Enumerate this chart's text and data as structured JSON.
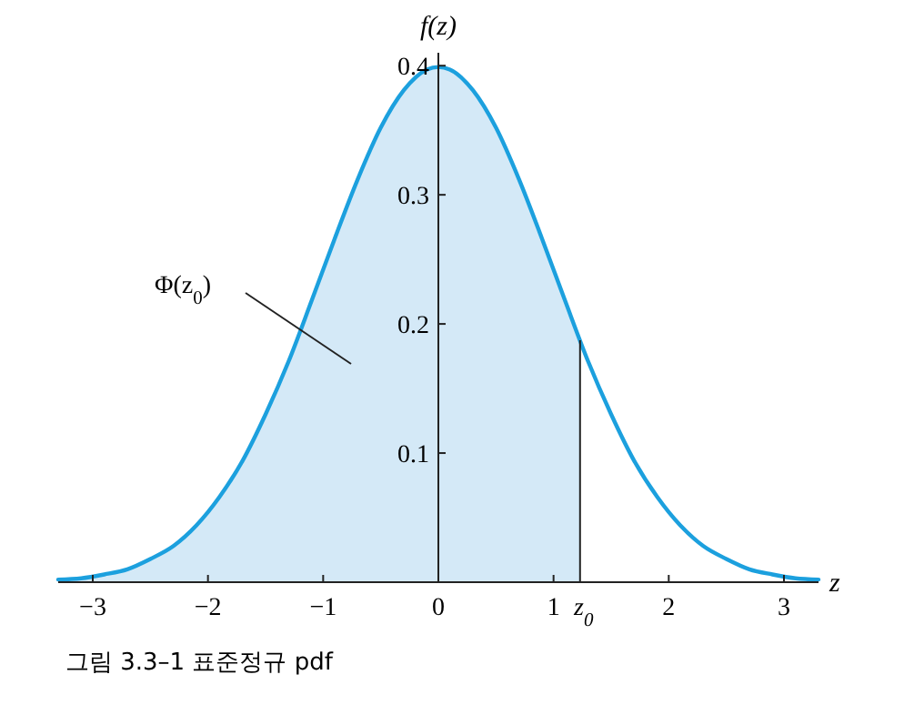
{
  "chart_data": {
    "type": "line",
    "xlabel": "z",
    "ylabel": "f(z)",
    "xlim": [
      -3.3,
      3.3
    ],
    "ylim": [
      0,
      0.41
    ],
    "xticks": [
      -3,
      -2,
      -1,
      0,
      1,
      2,
      3
    ],
    "ref_lines": [
      {
        "axis": "x",
        "value": 1.23,
        "label": "z$_{0}$",
        "color": "#222222"
      }
    ],
    "yticks": [
      0.1,
      0.2,
      0.3,
      0.4
    ],
    "series": [
      {
        "type": "area",
        "color": "#d4e9f7",
        "x": [
          -3.3,
          -3.1,
          -2.9,
          -2.7,
          -2.5,
          -2.3,
          -2.1,
          -1.9,
          -1.7,
          -1.5,
          -1.3,
          -1.1,
          -0.9,
          -0.7,
          -0.5,
          -0.3,
          -0.1,
          0,
          0.1,
          0.3,
          0.5,
          0.7,
          0.9,
          1.1,
          1.23
        ],
        "values": [
          0.002,
          0.003,
          0.006,
          0.01,
          0.018,
          0.028,
          0.044,
          0.066,
          0.094,
          0.13,
          0.171,
          0.218,
          0.266,
          0.312,
          0.352,
          0.381,
          0.397,
          0.399,
          0.397,
          0.381,
          0.352,
          0.312,
          0.266,
          0.218,
          0.187
        ]
      },
      {
        "color": "#1ca0de",
        "x": [
          -3.3,
          -3.1,
          -2.9,
          -2.7,
          -2.5,
          -2.3,
          -2.1,
          -1.9,
          -1.7,
          -1.5,
          -1.3,
          -1.1,
          -0.9,
          -0.7,
          -0.5,
          -0.3,
          -0.1,
          0,
          0.1,
          0.3,
          0.5,
          0.7,
          0.9,
          1.1,
          1.3,
          1.5,
          1.7,
          1.9,
          2.1,
          2.3,
          2.5,
          2.7,
          2.9,
          3.1,
          3.3
        ],
        "values": [
          0.002,
          0.003,
          0.006,
          0.01,
          0.018,
          0.028,
          0.044,
          0.066,
          0.094,
          0.13,
          0.171,
          0.218,
          0.266,
          0.312,
          0.352,
          0.381,
          0.397,
          0.399,
          0.397,
          0.381,
          0.352,
          0.312,
          0.266,
          0.218,
          0.171,
          0.13,
          0.094,
          0.066,
          0.044,
          0.028,
          0.018,
          0.01,
          0.006,
          0.003,
          0.002
        ]
      }
    ],
    "annotations": [
      "Φ(z$_{0}$)",
      "그림 3.3–1   표준정규 pdf"
    ]
  }
}
